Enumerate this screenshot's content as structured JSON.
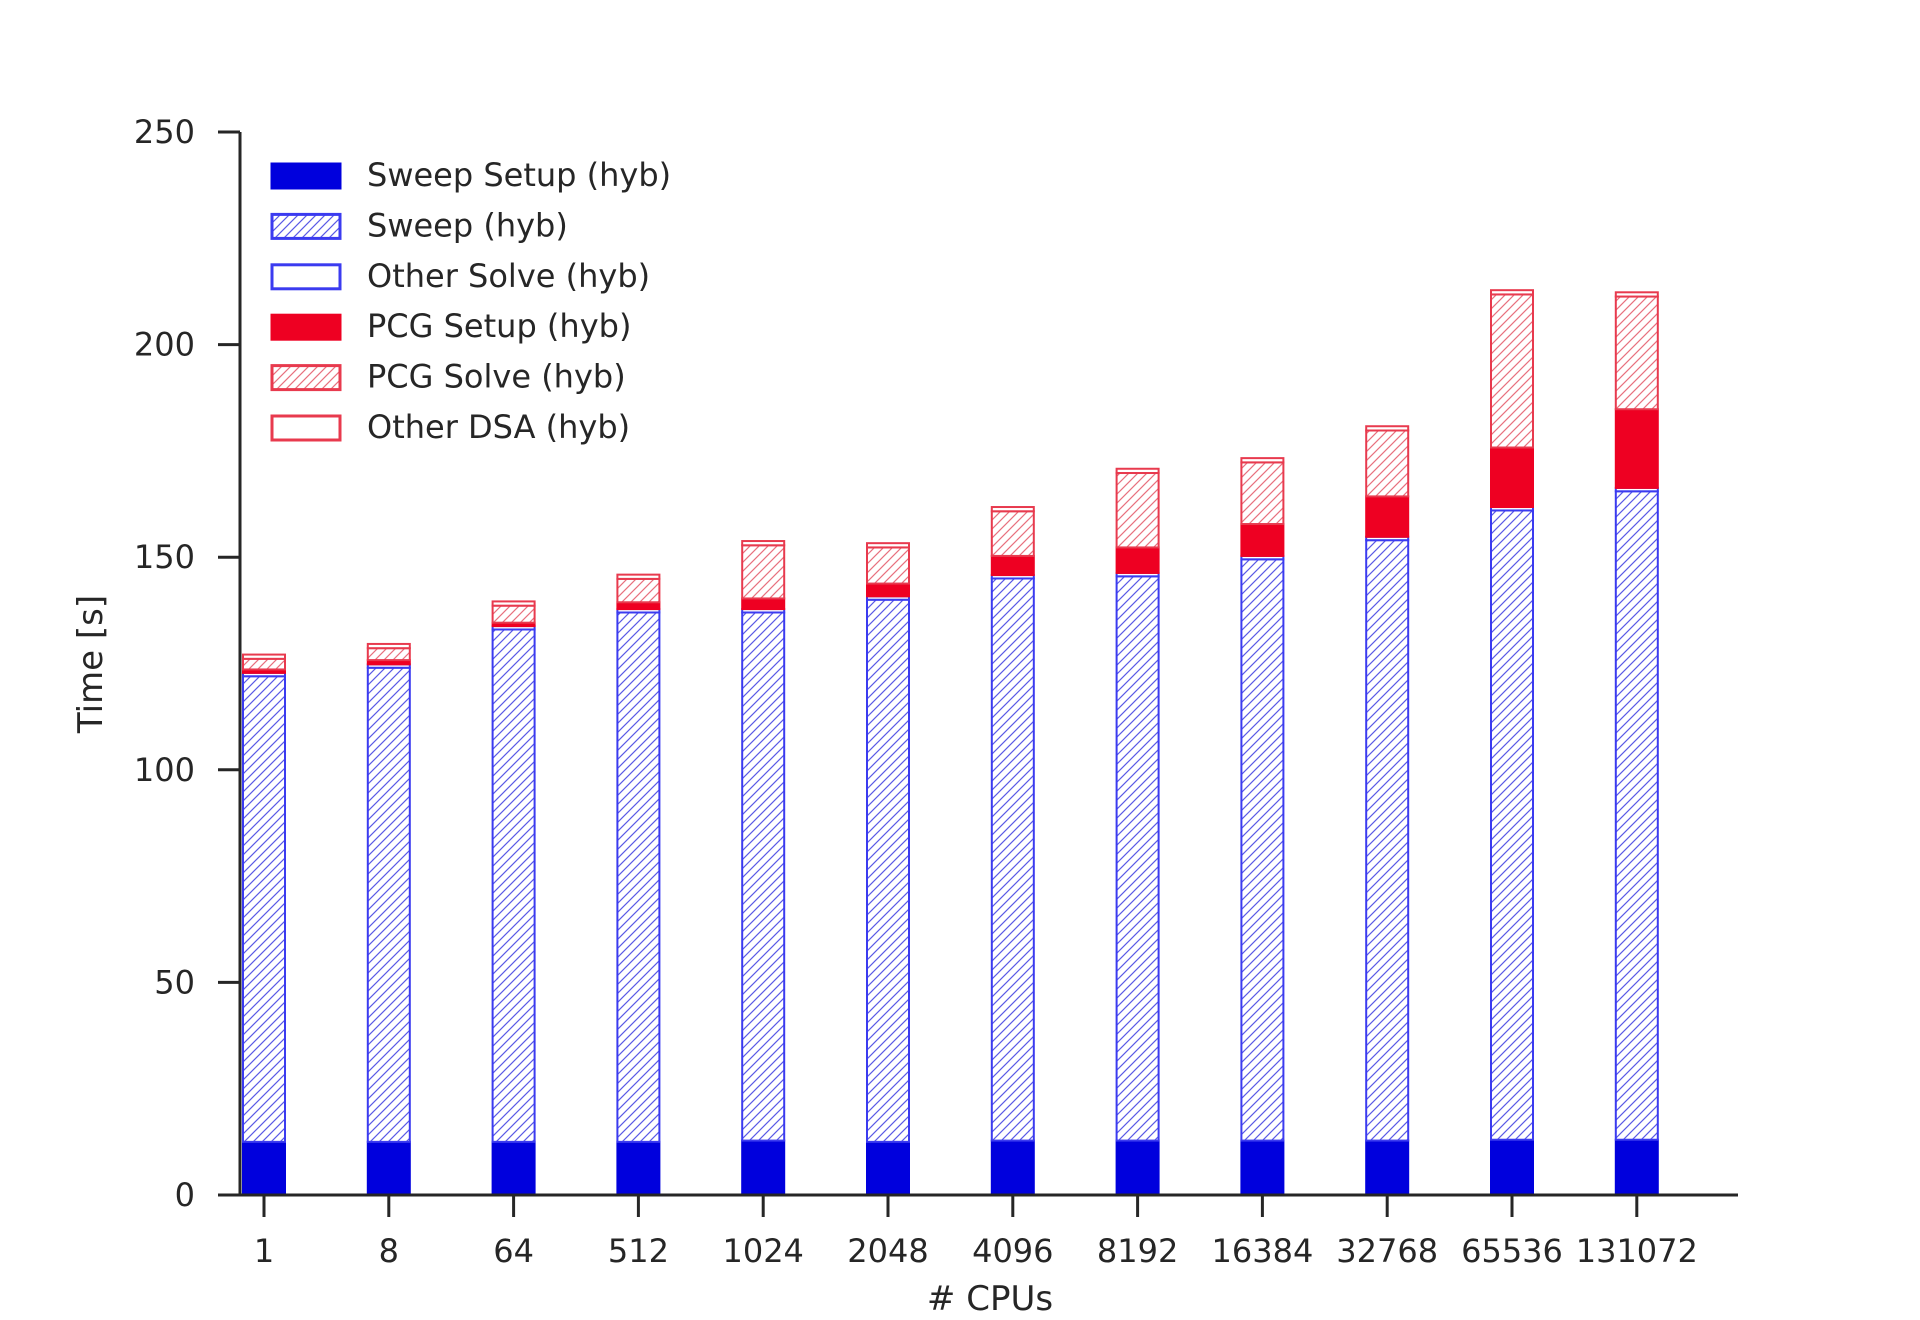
{
  "chart_data": {
    "type": "bar",
    "stacked": true,
    "title": "",
    "xlabel": "# CPUs",
    "ylabel": "Time [s]",
    "ylim": [
      0,
      250
    ],
    "yticks": [
      0,
      50,
      100,
      150,
      200,
      250
    ],
    "grid": false,
    "legend_position": "top-left",
    "categories": [
      "1",
      "8",
      "64",
      "512",
      "1024",
      "2048",
      "4096",
      "8192",
      "16384",
      "32768",
      "65536",
      "131072"
    ],
    "series": [
      {
        "name": "Sweep Setup (hyb)",
        "style": "solid",
        "color": "#0000dd",
        "values": [
          12.5,
          12.5,
          12.5,
          12.5,
          12.8,
          12.5,
          12.8,
          12.8,
          12.8,
          12.8,
          13.0,
          13.0
        ]
      },
      {
        "name": "Sweep (hyb)",
        "style": "hatch",
        "color": "#3b3bf0",
        "values": [
          109.5,
          111.5,
          120.5,
          124.5,
          124.2,
          127.5,
          132.2,
          132.7,
          136.7,
          141.2,
          148.0,
          152.5
        ]
      },
      {
        "name": "Other Solve (hyb)",
        "style": "outline",
        "color": "#3b3bf0",
        "values": [
          0.8,
          0.8,
          0.8,
          0.8,
          0.8,
          0.8,
          0.8,
          0.8,
          0.8,
          0.8,
          0.8,
          0.8
        ]
      },
      {
        "name": "PCG Setup (hyb)",
        "style": "solid",
        "color": "#ee0022",
        "values": [
          0.8,
          1.0,
          0.8,
          1.6,
          2.5,
          3.0,
          4.5,
          6.0,
          7.5,
          9.5,
          14.0,
          18.5
        ]
      },
      {
        "name": "PCG Solve (hyb)",
        "style": "hatch",
        "color": "#e83a4e",
        "values": [
          2.5,
          2.8,
          4.0,
          5.5,
          12.5,
          8.5,
          10.5,
          17.5,
          14.5,
          15.5,
          36.0,
          26.5
        ]
      },
      {
        "name": "Other DSA (hyb)",
        "style": "outline",
        "color": "#e83a4e",
        "values": [
          1.0,
          1.0,
          1.0,
          1.0,
          1.0,
          1.0,
          1.0,
          1.0,
          1.0,
          1.0,
          1.0,
          1.0
        ]
      }
    ]
  }
}
